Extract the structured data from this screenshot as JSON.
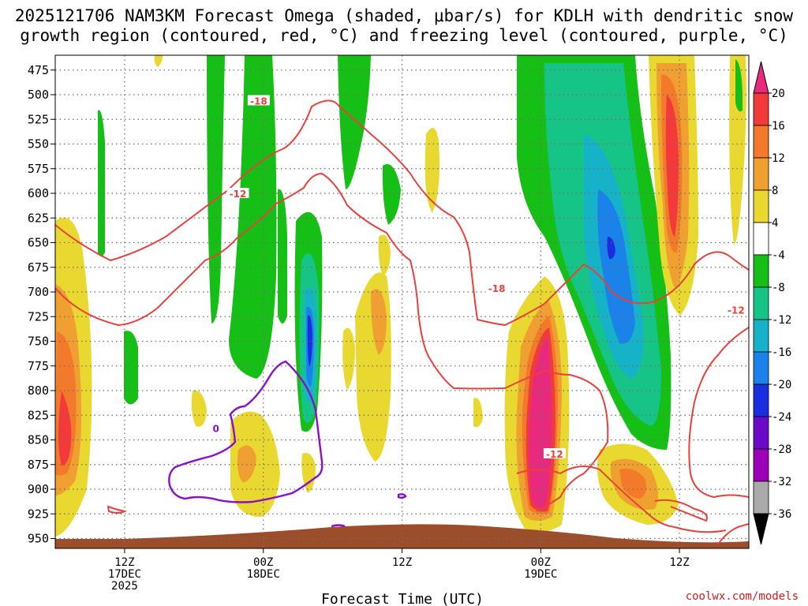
{
  "title_line1": "2025121706 NAM3KM Forecast Omega (shaded, μbar/s) for KDLH with dendritic snow",
  "title_line2": "growth region (contoured, red, °C) and freezing level (contoured, purple, °C)",
  "credit": "coolwx.com/models",
  "colors": {
    "ground": "#9c4e2a",
    "dendritic_contour": "#e8413c",
    "freezing_contour": "#8a10c8",
    "grid": "#6e6e6e"
  },
  "chart_data": {
    "type": "heatmap",
    "title": "2025121706 NAM3KM Forecast Omega (shaded, μbar/s) for KDLH with dendritic snow growth region (contoured, red, °C) and freezing level (contoured, purple, °C)",
    "xlabel": "Forecast Time (UTC)",
    "ylabel": "",
    "x_ticks": [
      {
        "line1": "12Z",
        "line2": "17DEC",
        "line3": "2025",
        "hour": 6
      },
      {
        "line1": "00Z",
        "line2": "18DEC",
        "line3": "",
        "hour": 18
      },
      {
        "line1": "12Z",
        "line2": "",
        "line3": "",
        "hour": 30
      },
      {
        "line1": "00Z",
        "line2": "19DEC",
        "line3": "",
        "hour": 42
      },
      {
        "line1": "12Z",
        "line2": "",
        "line3": "",
        "hour": 54
      }
    ],
    "xlim": [
      0,
      60
    ],
    "y_ticks": [
      475,
      500,
      525,
      550,
      575,
      600,
      625,
      650,
      675,
      700,
      725,
      750,
      775,
      800,
      825,
      850,
      875,
      900,
      925,
      950
    ],
    "ylim": [
      960,
      460
    ],
    "colorbar": {
      "labels": [
        "20",
        "16",
        "12",
        "8",
        "4",
        "-4",
        "-8",
        "-12",
        "-16",
        "-20",
        "-24",
        "-28",
        "-32",
        "-36"
      ],
      "colors": [
        "#e8297e",
        "#f23a3a",
        "#f27a2a",
        "#f0a030",
        "#e8d830",
        "#ffffff",
        "#15bf15",
        "#17c488",
        "#15b2c8",
        "#1a82e8",
        "#1a2ee0",
        "#6a0ac8",
        "#9c00b8",
        "#aaaaaa"
      ]
    },
    "contour_labels": [
      {
        "text": "-18",
        "series": "dendritic",
        "hour": 17.6,
        "p": 506
      },
      {
        "text": "-12",
        "series": "dendritic",
        "hour": 15.8,
        "p": 600
      },
      {
        "text": "-18",
        "series": "dendritic",
        "hour": 38.2,
        "p": 696
      },
      {
        "text": "-12",
        "series": "dendritic",
        "hour": 58.9,
        "p": 718
      },
      {
        "text": "-12",
        "series": "dendritic",
        "hour": 43.2,
        "p": 864
      },
      {
        "text": "0",
        "series": "freezing",
        "hour": 13.9,
        "p": 838
      }
    ],
    "omega_features": [
      {
        "hour": 1.0,
        "p_top": 600,
        "p_bot": 925,
        "min": 4,
        "max": 20
      },
      {
        "hour": 15.8,
        "p_top": 710,
        "p_bot": 900,
        "min": 4,
        "max": 8
      },
      {
        "hour": 21.8,
        "p_top": 600,
        "p_bot": 850,
        "min": -36,
        "max": -8
      },
      {
        "hour": 27.8,
        "p_top": 600,
        "p_bot": 850,
        "min": 4,
        "max": 12
      },
      {
        "hour": 42.0,
        "p_top": 650,
        "p_bot": 950,
        "min": 4,
        "max": 20
      },
      {
        "hour": 48.2,
        "p_top": 460,
        "p_bot": 830,
        "min": -28,
        "max": -4
      },
      {
        "hour": 54.0,
        "p_top": 460,
        "p_bot": 700,
        "min": 4,
        "max": 20
      },
      {
        "hour": 50.5,
        "p_top": 830,
        "p_bot": 925,
        "min": 4,
        "max": 12
      }
    ]
  }
}
